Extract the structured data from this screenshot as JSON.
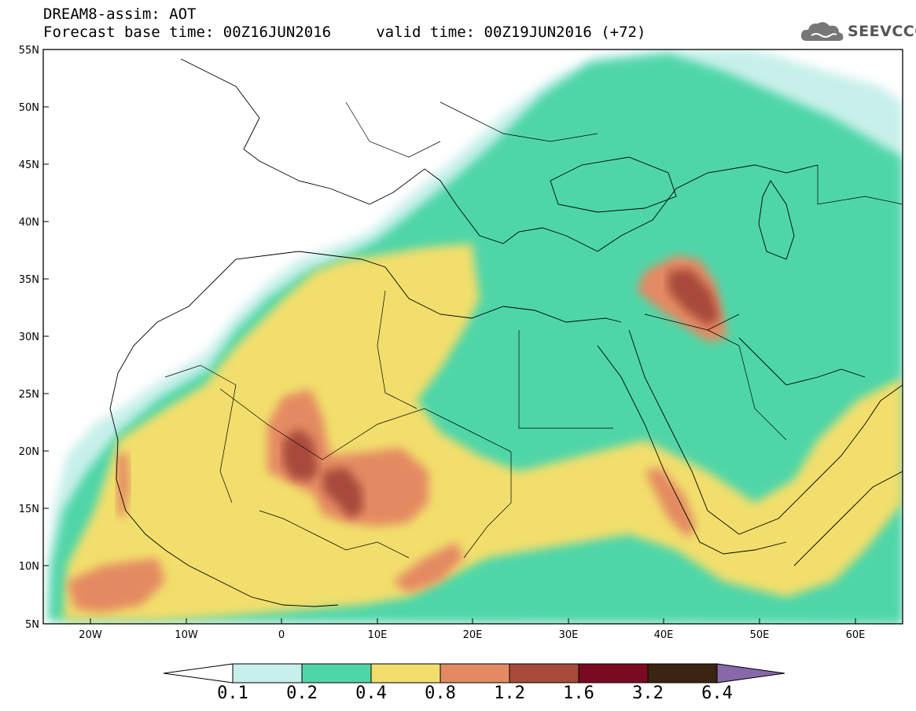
{
  "header": {
    "line1": "DREAM8-assim: AOT",
    "line2": "Forecast base time: 00Z16JUN2016     valid time: 00Z19JUN2016 (+72)"
  },
  "logo": {
    "text": "SEEVCCC",
    "icon": "cloud-icon"
  },
  "map": {
    "lat_labels": [
      "55N",
      "50N",
      "45N",
      "40N",
      "35N",
      "30N",
      "25N",
      "20N",
      "15N",
      "10N",
      "5N"
    ],
    "lon_labels": [
      "20W",
      "10W",
      "0",
      "10E",
      "20E",
      "30E",
      "40E",
      "50E",
      "60E"
    ]
  },
  "colorbar": {
    "labels": [
      "0.1",
      "0.2",
      "0.4",
      "0.8",
      "1.2",
      "1.6",
      "3.2",
      "6.4"
    ],
    "colors": [
      "#c8f0ea",
      "#4fd6a8",
      "#f2de6c",
      "#e48a62",
      "#a84a3a",
      "#7a0a22",
      "#3c2412",
      "#8868a8"
    ]
  },
  "colors": {
    "c01": "#c8f0ea",
    "c02": "#4fd6a8",
    "c04": "#f2de6c",
    "c08": "#e48a62",
    "c12": "#a84a3a",
    "c16": "#7a0a22"
  }
}
